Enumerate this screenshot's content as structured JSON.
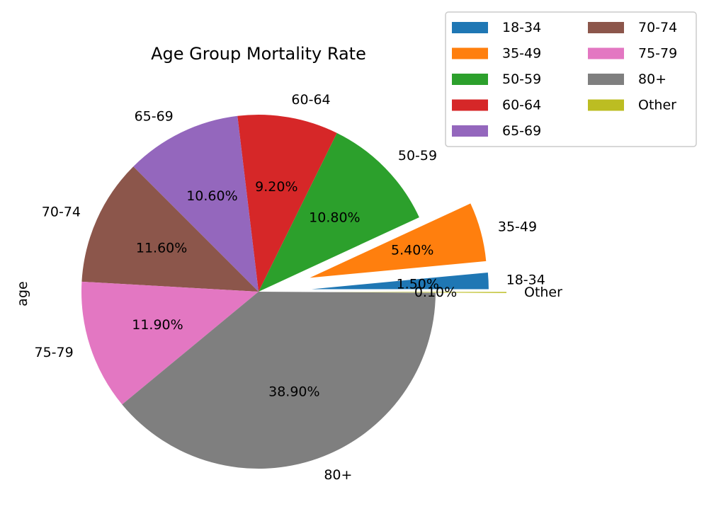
{
  "chart_data": {
    "type": "pie",
    "title": "Age Group Mortality Rate",
    "ylabel": "age",
    "legend_position": "top-right",
    "legend_columns": 2,
    "slices": [
      {
        "label": "18-34",
        "value": 1.5,
        "pct_label": "1.50%",
        "color": "#1f77b4",
        "explode": 0.3
      },
      {
        "label": "35-49",
        "value": 5.4,
        "pct_label": "5.40%",
        "color": "#ff7f0e",
        "explode": 0.3
      },
      {
        "label": "50-59",
        "value": 10.8,
        "pct_label": "10.80%",
        "color": "#2ca02c",
        "explode": 0
      },
      {
        "label": "60-64",
        "value": 9.2,
        "pct_label": "9.20%",
        "color": "#d62728",
        "explode": 0
      },
      {
        "label": "65-69",
        "value": 10.6,
        "pct_label": "10.60%",
        "color": "#9467bd",
        "explode": 0
      },
      {
        "label": "70-74",
        "value": 11.6,
        "pct_label": "11.60%",
        "color": "#8c564b",
        "explode": 0
      },
      {
        "label": "75-79",
        "value": 11.9,
        "pct_label": "11.90%",
        "color": "#e377c2",
        "explode": 0
      },
      {
        "label": "80+",
        "value": 38.9,
        "pct_label": "38.90%",
        "color": "#7f7f7f",
        "explode": 0
      },
      {
        "label": "Other",
        "value": 0.1,
        "pct_label": "0.10%",
        "color": "#bcbd22",
        "explode": 0.4
      }
    ]
  }
}
